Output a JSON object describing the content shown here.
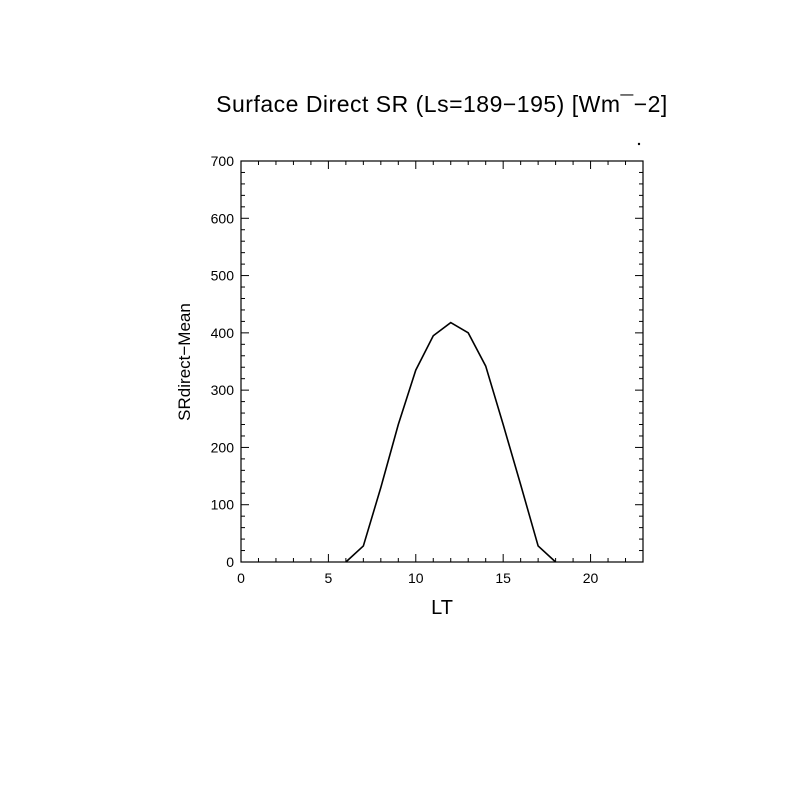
{
  "chart_data": {
    "type": "line",
    "title": "Surface Direct SR (Ls=189−195) [Wm¯−2]",
    "xlabel": "LT",
    "ylabel": "SRdirect−Mean",
    "xlim": [
      0,
      23
    ],
    "ylim": [
      0,
      700
    ],
    "xticks": [
      0,
      5,
      10,
      15,
      20
    ],
    "xtick_labels": [
      "0",
      "5",
      "10",
      "15",
      "20"
    ],
    "yticks": [
      0,
      100,
      200,
      300,
      400,
      500,
      600,
      700
    ],
    "ytick_labels": [
      "0",
      "100",
      "200",
      "300",
      "400",
      "500",
      "600",
      "700"
    ],
    "x_minor_step": 1,
    "y_minor_step": 20,
    "grid": false,
    "series": [
      {
        "name": "SRdirect-Mean",
        "x": [
          0,
          1,
          2,
          3,
          4,
          5,
          6,
          7,
          8,
          9,
          10,
          11,
          12,
          13,
          14,
          15,
          16,
          17,
          18,
          19,
          20,
          21,
          22,
          23
        ],
        "values": [
          0,
          0,
          0,
          0,
          0,
          0,
          0,
          28,
          130,
          240,
          335,
          395,
          418,
          400,
          342,
          240,
          135,
          28,
          0,
          0,
          0,
          0,
          0,
          0
        ],
        "color": "#000000"
      }
    ]
  }
}
